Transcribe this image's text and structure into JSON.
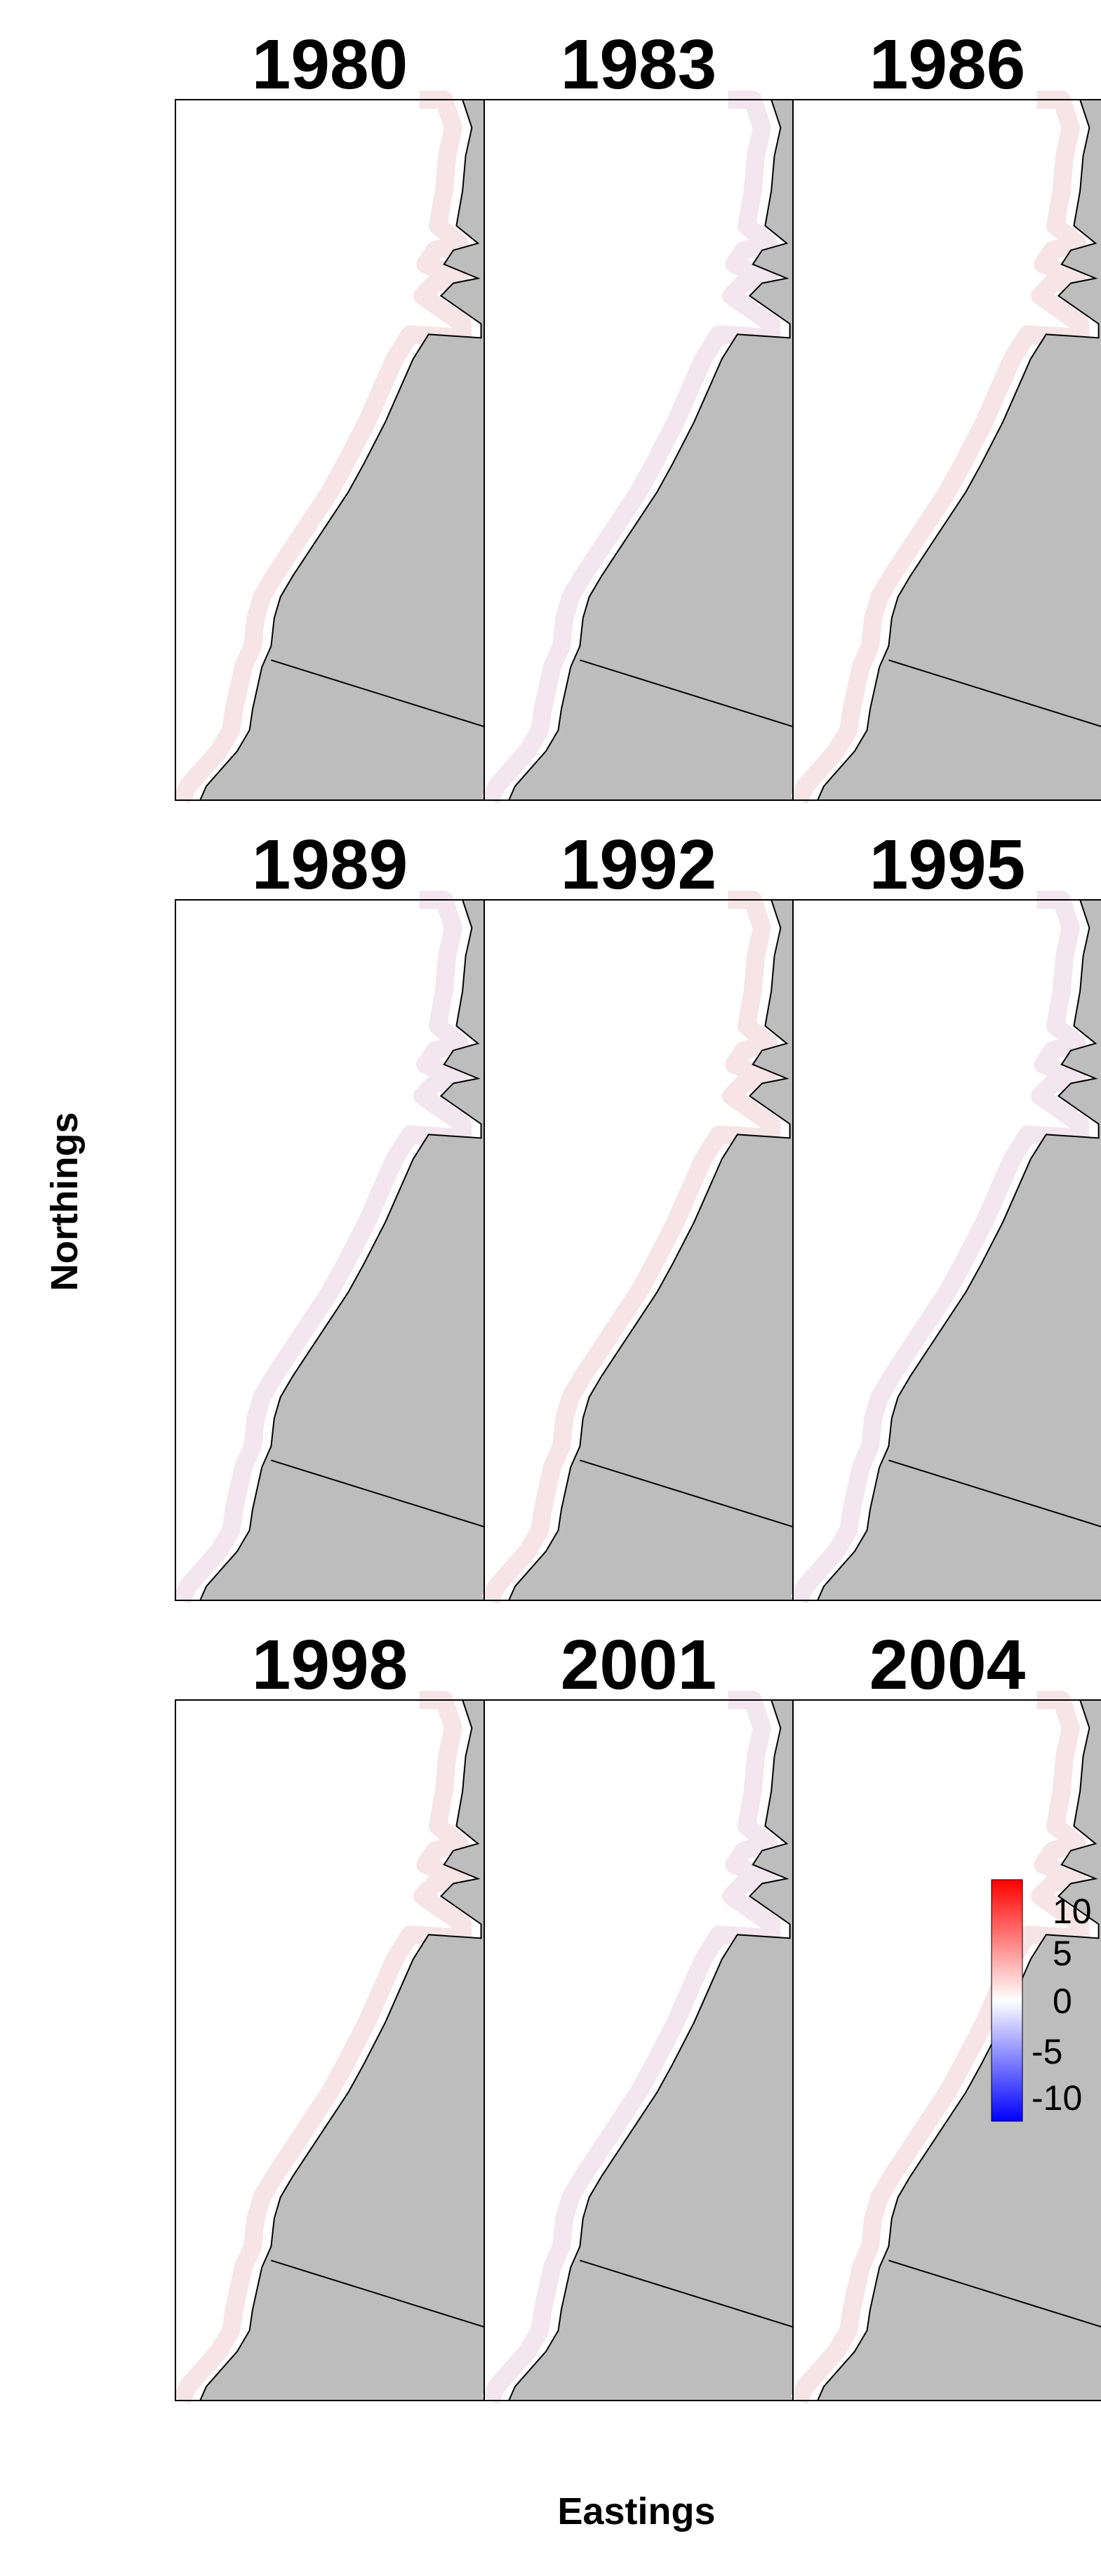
{
  "figure": {
    "xlabel": "Eastings",
    "ylabel": "Northings",
    "colors": {
      "land": "#bdbdbd",
      "coastline": "#000000",
      "positive": "#ff0000",
      "neutral": "#ffffff",
      "negative": "#0000ff"
    }
  },
  "panels": [
    {
      "title": "1980"
    },
    {
      "title": "1983"
    },
    {
      "title": "1986"
    },
    {
      "title": "1989"
    },
    {
      "title": "1992"
    },
    {
      "title": "1995"
    },
    {
      "title": "1998"
    },
    {
      "title": "2001"
    },
    {
      "title": "2004"
    }
  ],
  "legend": {
    "ticks": [
      "10",
      "5",
      "0",
      "-5",
      "-10"
    ]
  }
}
